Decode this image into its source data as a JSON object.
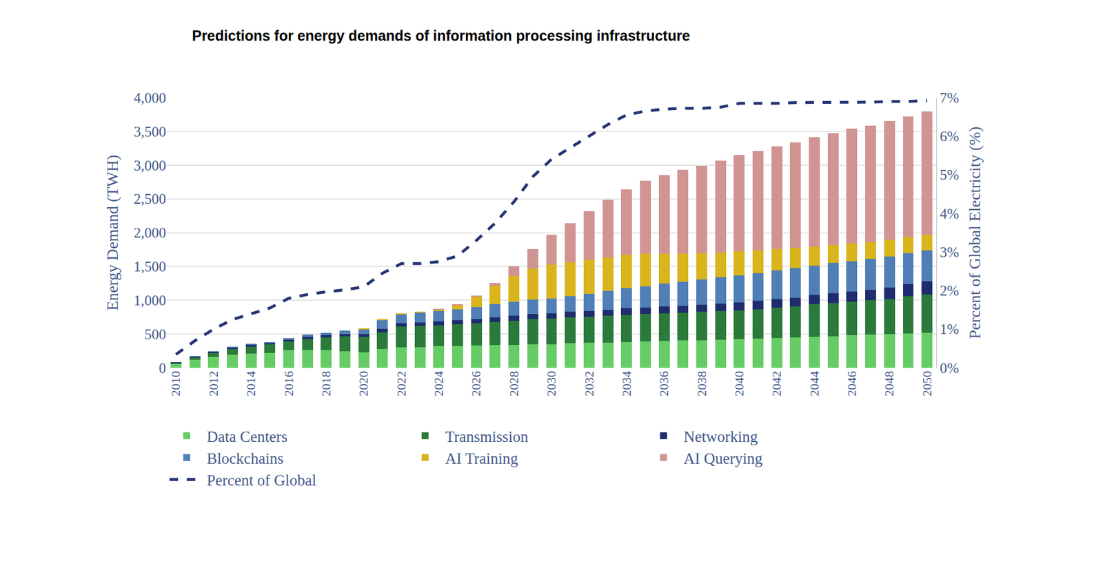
{
  "chart_data": {
    "type": "bar",
    "title": "Predictions for energy demands of information processing infrastructure",
    "y_label": "Energy Demand (TWH)",
    "y2_label": "Percent of Global Electricity (%)",
    "stacked": true,
    "grid": true,
    "legend": "bottom",
    "categories": [
      "2010",
      null,
      "2012",
      null,
      "2014",
      null,
      "2016",
      null,
      "2018",
      null,
      "2020",
      null,
      "2022",
      null,
      "2024",
      null,
      "2026",
      null,
      "2028",
      null,
      "2030",
      null,
      "2032",
      null,
      "2034",
      null,
      "2036",
      null,
      "2038",
      null,
      "2040",
      null,
      "2042",
      null,
      "2044",
      null,
      "2046",
      null,
      "2048",
      null,
      "2050"
    ],
    "ylim": [
      0,
      4000
    ],
    "yticks": [
      0,
      500,
      {
        "value": 1000,
        "label": "1,000"
      },
      {
        "value": 1500,
        "label": "1,500"
      },
      {
        "value": 2000,
        "label": "2,000"
      },
      {
        "value": 2500,
        "label": "2,500"
      },
      {
        "value": 3000,
        "label": "3,000"
      },
      {
        "value": 3500,
        "label": "3,500"
      },
      {
        "value": 4000,
        "label": "4,000"
      }
    ],
    "y2lim": [
      0,
      7
    ],
    "y2ticks": [
      {
        "value": 0,
        "label": "0%"
      },
      {
        "value": 1,
        "label": "1%"
      },
      {
        "value": 2,
        "label": "2%"
      },
      {
        "value": 3,
        "label": "3%"
      },
      {
        "value": 4,
        "label": "4%"
      },
      {
        "value": 5,
        "label": "5%"
      },
      {
        "value": 6,
        "label": "6%"
      },
      {
        "value": 7,
        "label": "7%"
      }
    ],
    "series": [
      {
        "name": "Data Centers",
        "color": "#66cc66",
        "values": [
          60,
          120,
          165,
          195,
          215,
          225,
          260,
          260,
          260,
          245,
          230,
          280,
          310,
          310,
          320,
          325,
          330,
          340,
          340,
          350,
          350,
          365,
          370,
          375,
          385,
          390,
          400,
          405,
          410,
          420,
          425,
          430,
          440,
          450,
          460,
          470,
          480,
          490,
          500,
          510,
          520
        ]
      },
      {
        "name": "Transmission",
        "color": "#2b7a3b",
        "values": [
          15,
          35,
          60,
          85,
          100,
          120,
          130,
          165,
          190,
          220,
          230,
          250,
          300,
          310,
          310,
          320,
          330,
          340,
          360,
          370,
          380,
          385,
          390,
          395,
          400,
          405,
          410,
          410,
          420,
          420,
          425,
          440,
          450,
          460,
          480,
          490,
          500,
          510,
          520,
          550,
          570
        ]
      },
      {
        "name": "Networking",
        "color": "#1f2d6e",
        "values": [
          5,
          10,
          15,
          20,
          25,
          25,
          30,
          35,
          35,
          40,
          45,
          45,
          50,
          55,
          60,
          60,
          60,
          65,
          70,
          75,
          80,
          85,
          85,
          90,
          95,
          95,
          100,
          100,
          105,
          110,
          115,
          120,
          125,
          130,
          135,
          140,
          150,
          155,
          170,
          180,
          190
        ]
      },
      {
        "name": "Blockchains",
        "color": "#4f7fb5",
        "values": [
          0,
          5,
          5,
          10,
          10,
          15,
          20,
          30,
          35,
          45,
          65,
          135,
          130,
          145,
          150,
          165,
          180,
          200,
          210,
          215,
          220,
          230,
          250,
          280,
          300,
          320,
          340,
          360,
          375,
          390,
          400,
          410,
          425,
          435,
          440,
          450,
          450,
          460,
          460,
          460,
          460
        ]
      },
      {
        "name": "AI Training",
        "color": "#d9b41c",
        "values": [
          0,
          0,
          0,
          0,
          0,
          0,
          0,
          0,
          0,
          0,
          10,
          10,
          10,
          10,
          25,
          60,
          150,
          270,
          380,
          460,
          500,
          500,
          500,
          490,
          490,
          480,
          440,
          415,
          390,
          370,
          355,
          340,
          320,
          300,
          280,
          270,
          260,
          245,
          240,
          240,
          230
        ]
      },
      {
        "name": "AI Querying",
        "color": "#d09593",
        "values": [
          0,
          0,
          0,
          0,
          0,
          0,
          0,
          0,
          0,
          0,
          0,
          0,
          0,
          0,
          5,
          10,
          20,
          45,
          140,
          290,
          440,
          575,
          725,
          860,
          970,
          1080,
          1160,
          1240,
          1290,
          1360,
          1430,
          1470,
          1520,
          1565,
          1615,
          1650,
          1700,
          1720,
          1760,
          1780,
          1830
        ]
      },
      {
        "name": "Percent of Global",
        "type": "line",
        "axis": "y2",
        "line_style": "dash",
        "color": "#263475",
        "values": [
          0.35,
          0.7,
          1.0,
          1.25,
          1.4,
          1.55,
          1.8,
          1.9,
          1.97,
          2.02,
          2.1,
          2.45,
          2.7,
          2.7,
          2.75,
          2.9,
          3.3,
          3.75,
          4.3,
          4.95,
          5.4,
          5.7,
          6.0,
          6.3,
          6.55,
          6.65,
          6.7,
          6.72,
          6.72,
          6.75,
          6.85,
          6.85,
          6.85,
          6.87,
          6.87,
          6.87,
          6.87,
          6.88,
          6.9,
          6.9,
          6.92
        ]
      }
    ]
  }
}
